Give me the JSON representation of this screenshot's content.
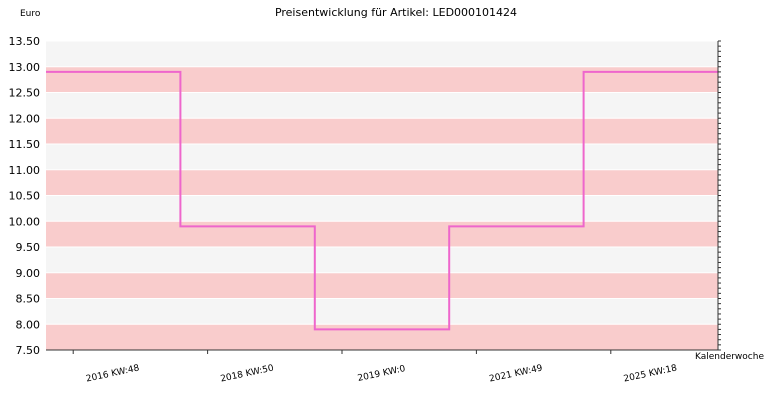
{
  "chart_data": {
    "type": "line",
    "title": "Preisentwicklung für Artikel: LED000101424",
    "ylabel": "Euro",
    "xlabel": "Kalenderwoche",
    "ylim": [
      7.5,
      13.5
    ],
    "yticks": [
      7.5,
      8.0,
      8.5,
      9.0,
      9.5,
      10.0,
      10.5,
      11.0,
      11.5,
      12.0,
      12.5,
      13.0,
      13.5
    ],
    "ytick_labels": [
      "7.50",
      "8.00",
      "8.50",
      "9.00",
      "9.50",
      "10.00",
      "10.50",
      "11.00",
      "11.50",
      "12.00",
      "12.50",
      "13.00",
      "13.50"
    ],
    "categories": [
      "2016 KW:48",
      "2018 KW:50",
      "2019 KW:0",
      "2021 KW:49",
      "2025 KW:18"
    ],
    "series": [
      {
        "values": [
          12.9,
          9.9,
          7.9,
          9.9,
          12.9
        ],
        "color": "#ee66cc"
      }
    ],
    "band_colors": [
      "#f9cccc",
      "#f5f5f5"
    ],
    "line_style": "step",
    "grid": true
  }
}
